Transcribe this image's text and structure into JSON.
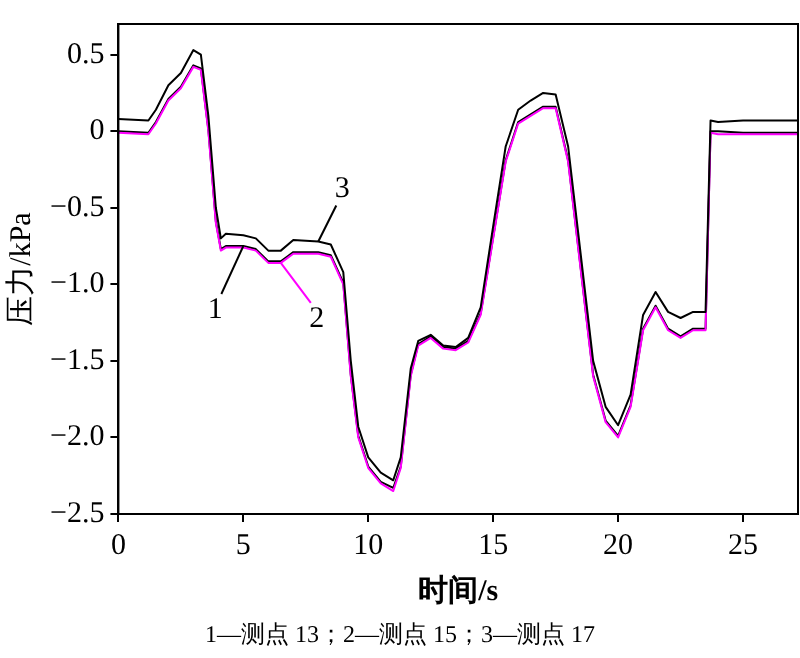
{
  "chart_data": {
    "type": "line",
    "xlabel": "时间/s",
    "ylabel": "压力/kPa",
    "xlim": [
      0,
      27.2
    ],
    "ylim": [
      -2.5,
      0.7
    ],
    "xticks": [
      0,
      5,
      10,
      15,
      20,
      25
    ],
    "yticks": [
      {
        "value": 0.5,
        "label": "0.5"
      },
      {
        "value": 0,
        "label": "0"
      },
      {
        "value": -0.5,
        "label": "−0.5"
      },
      {
        "value": -1,
        "label": "−1.0"
      },
      {
        "value": -1.5,
        "label": "−1.5"
      },
      {
        "value": -2,
        "label": "−2.0"
      },
      {
        "value": -2.5,
        "label": "−2.5"
      }
    ],
    "grid": false,
    "legend": "left",
    "marker": "none",
    "line_style": "solid",
    "x": [
      0,
      1.2,
      1.5,
      2,
      2.5,
      3,
      3.3,
      3.6,
      3.9,
      4.1,
      4.3,
      5,
      5.5,
      6,
      6.5,
      7,
      8,
      8.5,
      9,
      9.3,
      9.6,
      10,
      10.5,
      11,
      11.3,
      11.7,
      12,
      12.5,
      13,
      13.5,
      14,
      14.5,
      15,
      15.5,
      16,
      16.5,
      17,
      17.5,
      18,
      18.5,
      19,
      19.5,
      20,
      20.5,
      21,
      21.5,
      22,
      22.5,
      23,
      23.5,
      23.7,
      24,
      25,
      27.2
    ],
    "series": [
      {
        "name": "1",
        "color": "#000000",
        "values": [
          0,
          -0.01,
          0.06,
          0.21,
          0.29,
          0.43,
          0.41,
          0.01,
          -0.59,
          -0.77,
          -0.75,
          -0.75,
          -0.77,
          -0.85,
          -0.85,
          -0.79,
          -0.79,
          -0.81,
          -0.99,
          -1.59,
          -1.99,
          -2.19,
          -2.29,
          -2.33,
          -2.19,
          -1.59,
          -1.39,
          -1.34,
          -1.41,
          -1.42,
          -1.37,
          -1.19,
          -0.69,
          -0.19,
          0.06,
          0.11,
          0.16,
          0.16,
          -0.19,
          -0.89,
          -1.59,
          -1.89,
          -1.99,
          -1.79,
          -1.29,
          -1.14,
          -1.29,
          -1.34,
          -1.29,
          -1.29,
          0,
          0,
          -0.01,
          -0.01
        ]
      },
      {
        "name": "2",
        "color": "#ff00ff",
        "values": [
          -0.01,
          -0.02,
          0.05,
          0.2,
          0.28,
          0.42,
          0.4,
          0,
          -0.6,
          -0.78,
          -0.76,
          -0.76,
          -0.78,
          -0.86,
          -0.86,
          -0.8,
          -0.8,
          -0.82,
          -1,
          -1.6,
          -2,
          -2.2,
          -2.3,
          -2.35,
          -2.2,
          -1.6,
          -1.4,
          -1.35,
          -1.42,
          -1.43,
          -1.38,
          -1.2,
          -0.7,
          -0.2,
          0.05,
          0.1,
          0.15,
          0.15,
          -0.2,
          -0.9,
          -1.6,
          -1.9,
          -2,
          -1.8,
          -1.3,
          -1.15,
          -1.3,
          -1.35,
          -1.3,
          -1.3,
          -0.01,
          -0.02,
          -0.02,
          -0.02
        ]
      },
      {
        "name": "3",
        "color": "#000000",
        "values": [
          0.08,
          0.07,
          0.14,
          0.3,
          0.38,
          0.53,
          0.5,
          0.1,
          -0.5,
          -0.7,
          -0.67,
          -0.68,
          -0.7,
          -0.78,
          -0.78,
          -0.71,
          -0.72,
          -0.74,
          -0.92,
          -1.5,
          -1.93,
          -2.13,
          -2.23,
          -2.28,
          -2.13,
          -1.55,
          -1.37,
          -1.33,
          -1.4,
          -1.41,
          -1.35,
          -1.15,
          -0.62,
          -0.1,
          0.14,
          0.2,
          0.25,
          0.24,
          -0.1,
          -0.8,
          -1.5,
          -1.8,
          -1.92,
          -1.72,
          -1.2,
          -1.05,
          -1.18,
          -1.22,
          -1.18,
          -1.18,
          0.07,
          0.06,
          0.07,
          0.07
        ]
      }
    ],
    "annotations": [
      "1—测点 13；2—测点 15；3—测点 17"
    ]
  }
}
